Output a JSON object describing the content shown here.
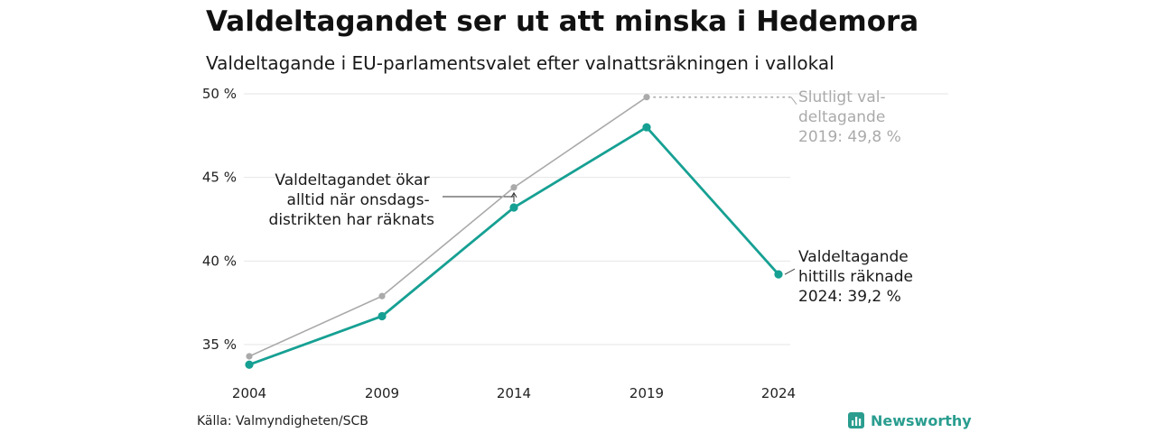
{
  "title": "Valdeltagandet ser ut att minska i Hedemora",
  "subtitle": "Valdeltagande i EU-parlamentsvalet efter valnattsräkningen i vallokal",
  "source": "Källa: Valmyndigheten/SCB",
  "brand": "Newsworthy",
  "colors": {
    "final_series": "#aaaaaa",
    "preliminary_series": "#16a093",
    "grid": "#e6e6e6",
    "brand": "#2a9d8f"
  },
  "chart_data": {
    "type": "line",
    "x": [
      "2004",
      "2009",
      "2014",
      "2019",
      "2024"
    ],
    "series": [
      {
        "name": "",
        "values": [
          34.3,
          37.9,
          44.4,
          49.8,
          null
        ]
      },
      {
        "name": "",
        "values": [
          33.8,
          36.7,
          43.2,
          48.0,
          39.2
        ]
      }
    ],
    "yticks": [
      "35 %",
      "40 %",
      "45 %",
      "50 %"
    ],
    "ytick_values": [
      35,
      40,
      45,
      50
    ],
    "ylim": [
      33.2,
      50.6
    ],
    "grid": true,
    "annotations": {
      "final_2019": [
        "Slutligt val-",
        "deltagande",
        "2019: 49,8 %"
      ],
      "counted_2024": [
        "Valdeltagande",
        "hittills räknade",
        "2024: 39,2 %"
      ],
      "increase_note": [
        "Valdeltagandet ökar",
        "alltid när onsdags-",
        "distrikten har räknats"
      ]
    }
  }
}
